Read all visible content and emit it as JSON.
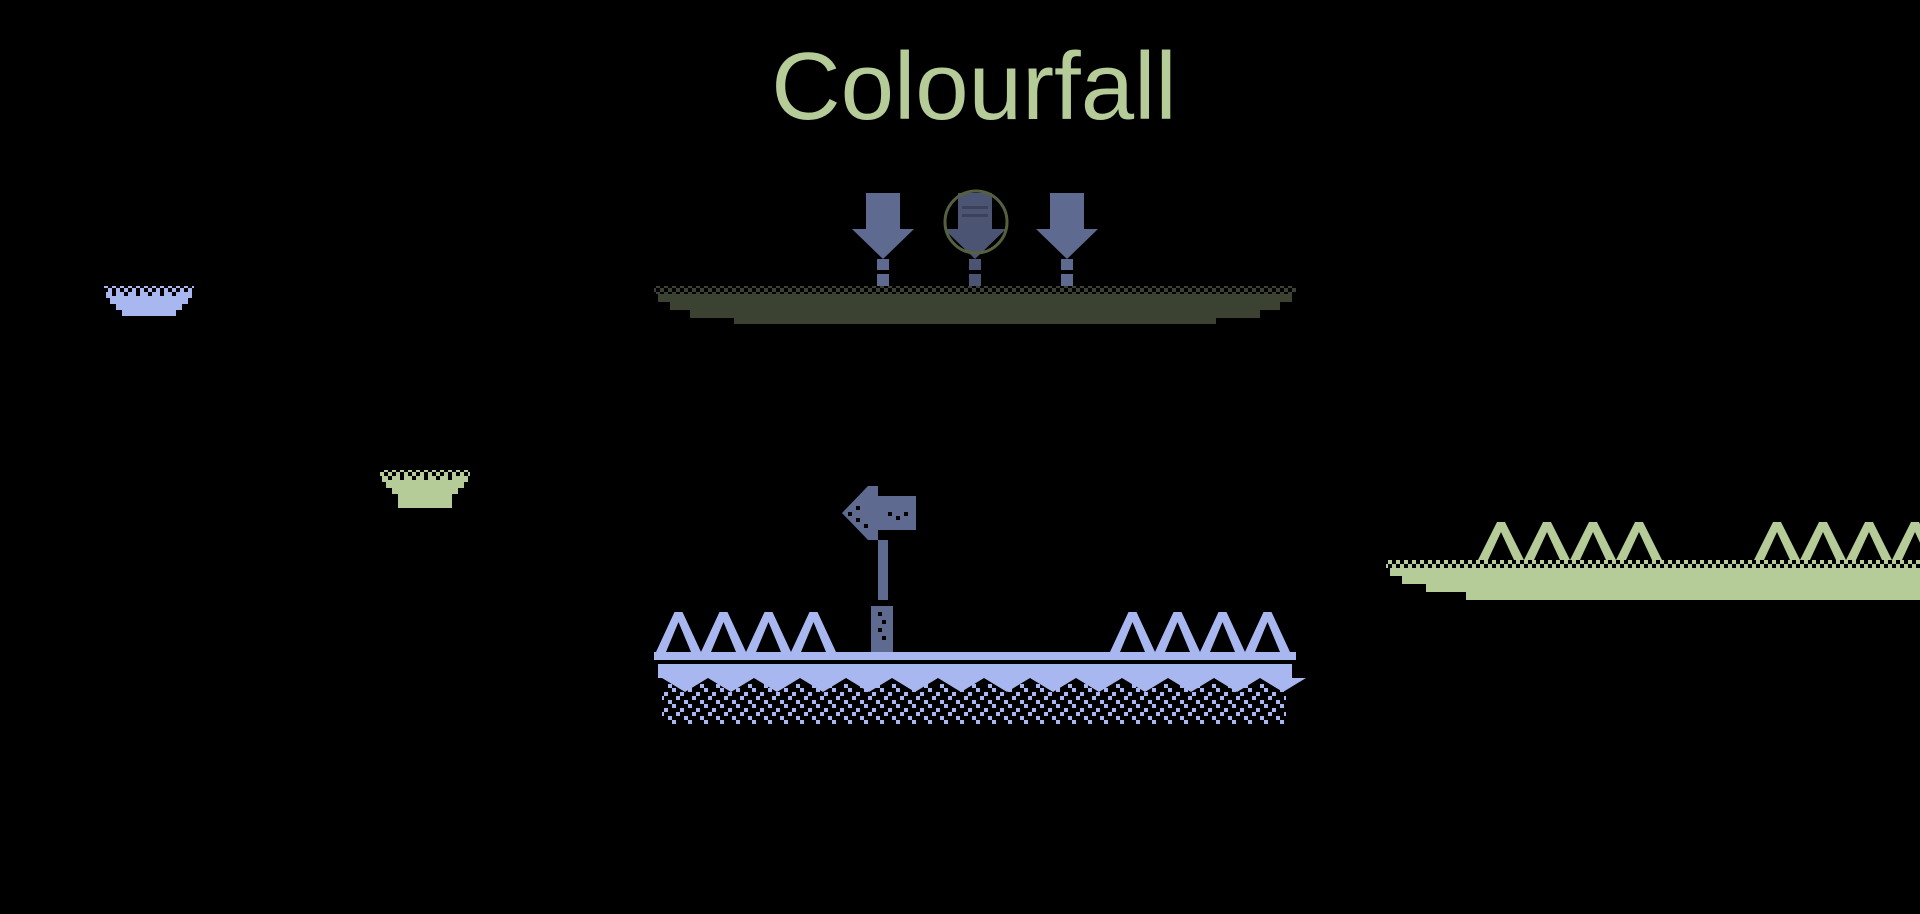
{
  "game": {
    "title": "Colourfall"
  },
  "colors": {
    "background": "#000000",
    "title": "#b5cc98",
    "green": "#b5cc98",
    "blue": "#a9b7f0",
    "slate": "#5f6a90",
    "olive": "#3b4232",
    "highlight_ring": "#55603f"
  },
  "scene": {
    "objects": [
      {
        "kind": "floating-platform",
        "color": "blue"
      },
      {
        "kind": "floating-platform",
        "color": "green"
      },
      {
        "kind": "top-platform",
        "color": "olive"
      },
      {
        "kind": "down-arrow",
        "color": "slate",
        "count": 3,
        "highlighted_index": 1
      },
      {
        "kind": "signpost",
        "icon": "arrow-left",
        "color": "slate"
      },
      {
        "kind": "spike-floor",
        "color": "blue"
      },
      {
        "kind": "spike-ledge",
        "color": "green"
      }
    ]
  }
}
